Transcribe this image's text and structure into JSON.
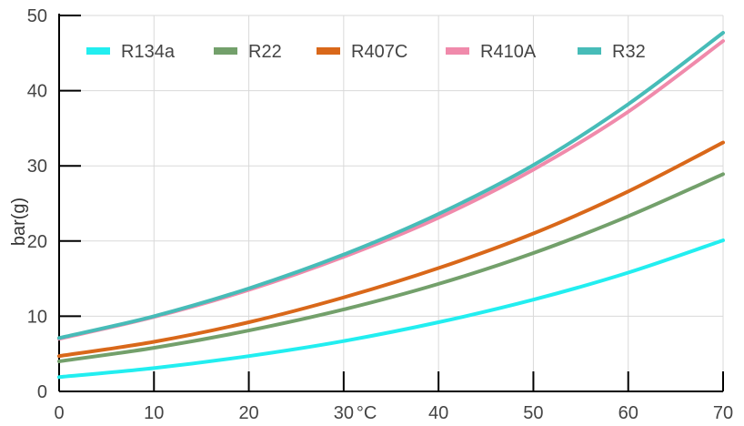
{
  "chart_data": {
    "type": "line",
    "title": "",
    "xlabel": "°C",
    "ylabel": "bar(g)",
    "xlim": [
      0,
      70
    ],
    "ylim": [
      0,
      50
    ],
    "x_ticks": [
      0,
      10,
      20,
      30,
      40,
      50,
      60,
      70
    ],
    "y_ticks": [
      0,
      10,
      20,
      30,
      40,
      50
    ],
    "grid": true,
    "legend_position": "top",
    "x": [
      0,
      10,
      20,
      30,
      40,
      50,
      60,
      70
    ],
    "series": [
      {
        "name": "R134a",
        "color": "#22eef0",
        "values": [
          1.9,
          3.1,
          4.7,
          6.7,
          9.2,
          12.2,
          15.8,
          20.1
        ]
      },
      {
        "name": "R22",
        "color": "#73a06b",
        "values": [
          4.0,
          5.8,
          8.1,
          10.9,
          14.3,
          18.4,
          23.3,
          28.9
        ]
      },
      {
        "name": "R407C",
        "color": "#d9681a",
        "values": [
          4.7,
          6.6,
          9.2,
          12.5,
          16.4,
          21.0,
          26.6,
          33.1
        ]
      },
      {
        "name": "R410A",
        "color": "#f08aab",
        "values": [
          7.0,
          9.9,
          13.5,
          17.9,
          23.1,
          29.5,
          37.2,
          46.6
        ]
      },
      {
        "name": "R32",
        "color": "#47bcb8",
        "values": [
          7.1,
          10.0,
          13.7,
          18.2,
          23.6,
          30.1,
          38.2,
          47.7
        ]
      }
    ]
  }
}
